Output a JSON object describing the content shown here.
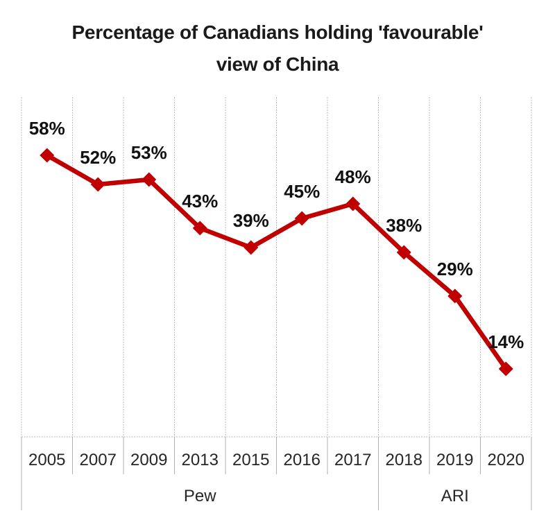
{
  "title": {
    "full": "Percentage of Canadians holding 'favourable' view of China",
    "line1": "Percentage of Canadians holding 'favourable'",
    "line2": "view of China"
  },
  "chart_data": {
    "type": "line",
    "title": "Percentage of Canadians holding 'favourable' view of China",
    "categories": [
      "2005",
      "2007",
      "2009",
      "2013",
      "2015",
      "2016",
      "2017",
      "2018",
      "2019",
      "2020"
    ],
    "values": [
      58,
      52,
      53,
      43,
      39,
      45,
      48,
      38,
      29,
      14
    ],
    "point_labels": [
      "58%",
      "52%",
      "53%",
      "43%",
      "39%",
      "45%",
      "48%",
      "38%",
      "29%",
      "14%"
    ],
    "groups": [
      {
        "label": "Pew",
        "start_index": 0,
        "end_index": 6
      },
      {
        "label": "ARI",
        "start_index": 7,
        "end_index": 9
      }
    ],
    "xlabel": "",
    "ylabel": "",
    "ylim": [
      0,
      70
    ],
    "grid": "vertical-only",
    "legend": "none",
    "marker": "diamond",
    "colors": {
      "line": "#c00000",
      "marker": "#c00000",
      "data_label": "#111111",
      "gridline": "#b9b9b9",
      "tick_line": "#b0b0b0",
      "category_text": "#262626",
      "title_text": "#1a1a1a"
    }
  }
}
